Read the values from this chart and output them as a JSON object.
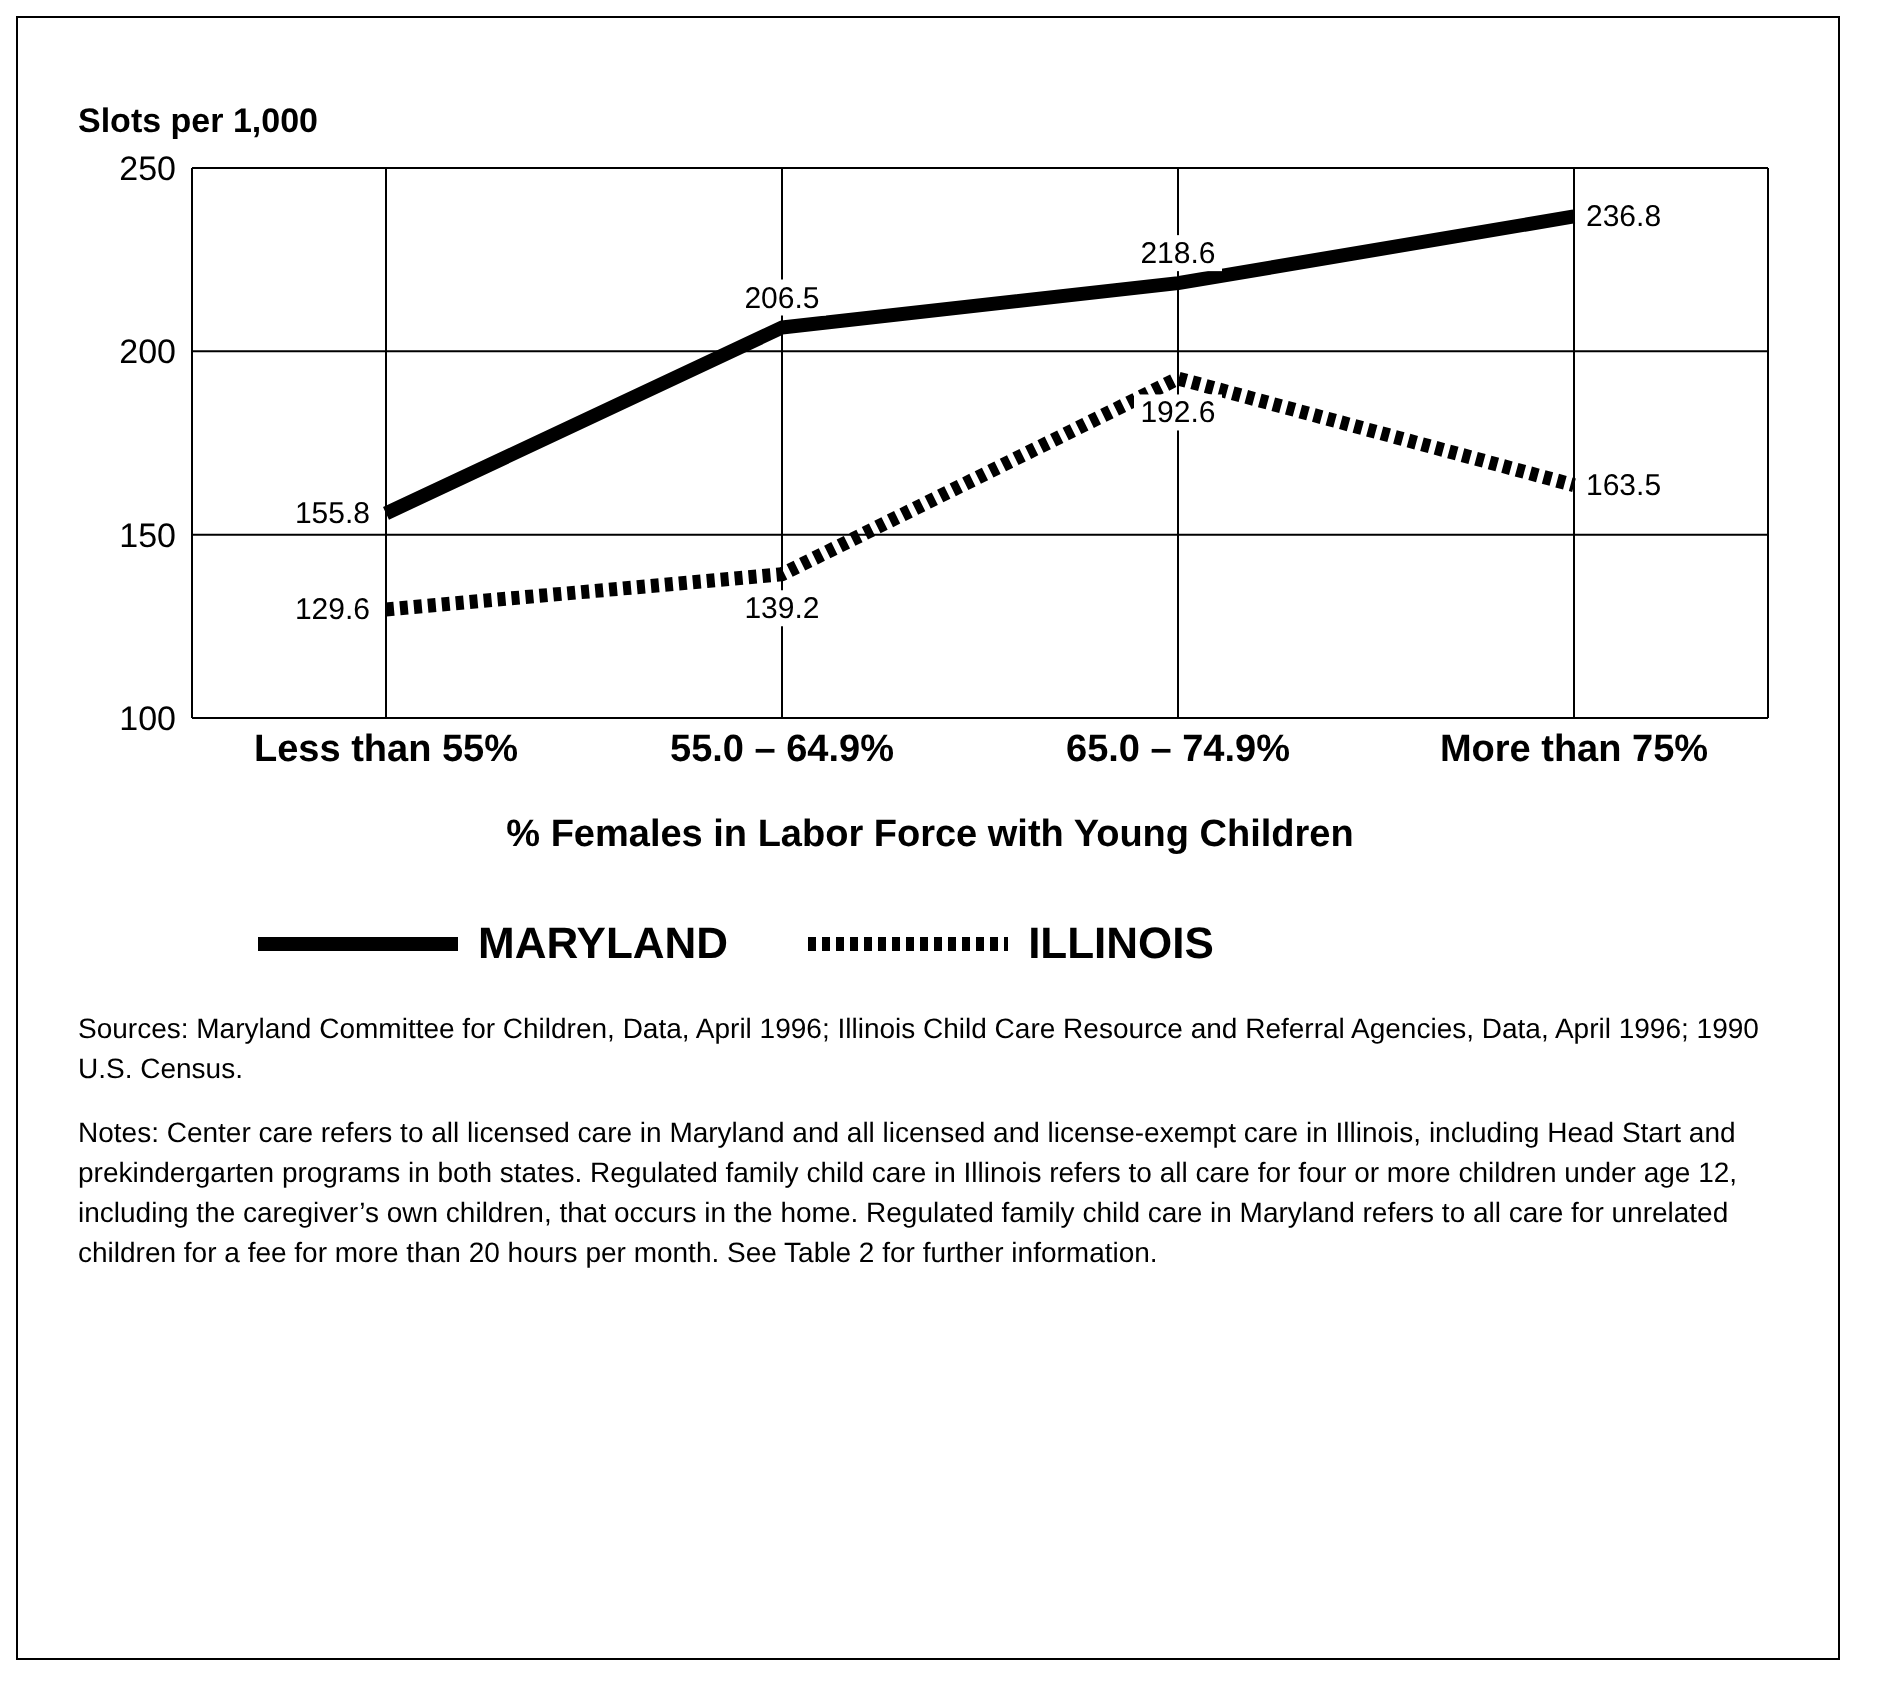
{
  "chart_data": {
    "type": "line",
    "ylabel": "Slots per 1,000",
    "xlabel": "% Females in Labor Force with Young Children",
    "categories": [
      "Less than 55%",
      "55.0 – 64.9%",
      "65.0 – 74.9%",
      "More than 75%"
    ],
    "series": [
      {
        "name": "MARYLAND",
        "color": "#000000",
        "values": [
          155.8,
          206.5,
          218.6,
          236.8
        ],
        "line_style": "solid"
      },
      {
        "name": "ILLINOIS",
        "color": "#000000",
        "values": [
          129.6,
          139.2,
          192.6,
          163.5
        ],
        "line_style": "dotted"
      }
    ],
    "ylim": [
      100,
      250
    ],
    "yticks": [
      100,
      150,
      200,
      250
    ],
    "grid": true,
    "legend": "bottom",
    "data_labels": true,
    "marker": "none",
    "annotations": [
      "Sources: Maryland Committee for Children, Data, April 1996; Illinois Child Care Resource and Referral Agencies, Data, April 1996; 1990 U.S. Census.",
      "Notes: Center care refers to all licensed care in Maryland and all licensed and license-exempt care in Illinois, including Head Start and prekindergarten programs in both states. Regulated family child care in Illinois refers to all care for four or more children under age 12, including the caregiver’s own children, that occurs in the home. Regulated family child care in Maryland refers to all care for unrelated children for a fee for more than 20 hours per month. See Table 2 for further information."
    ]
  }
}
